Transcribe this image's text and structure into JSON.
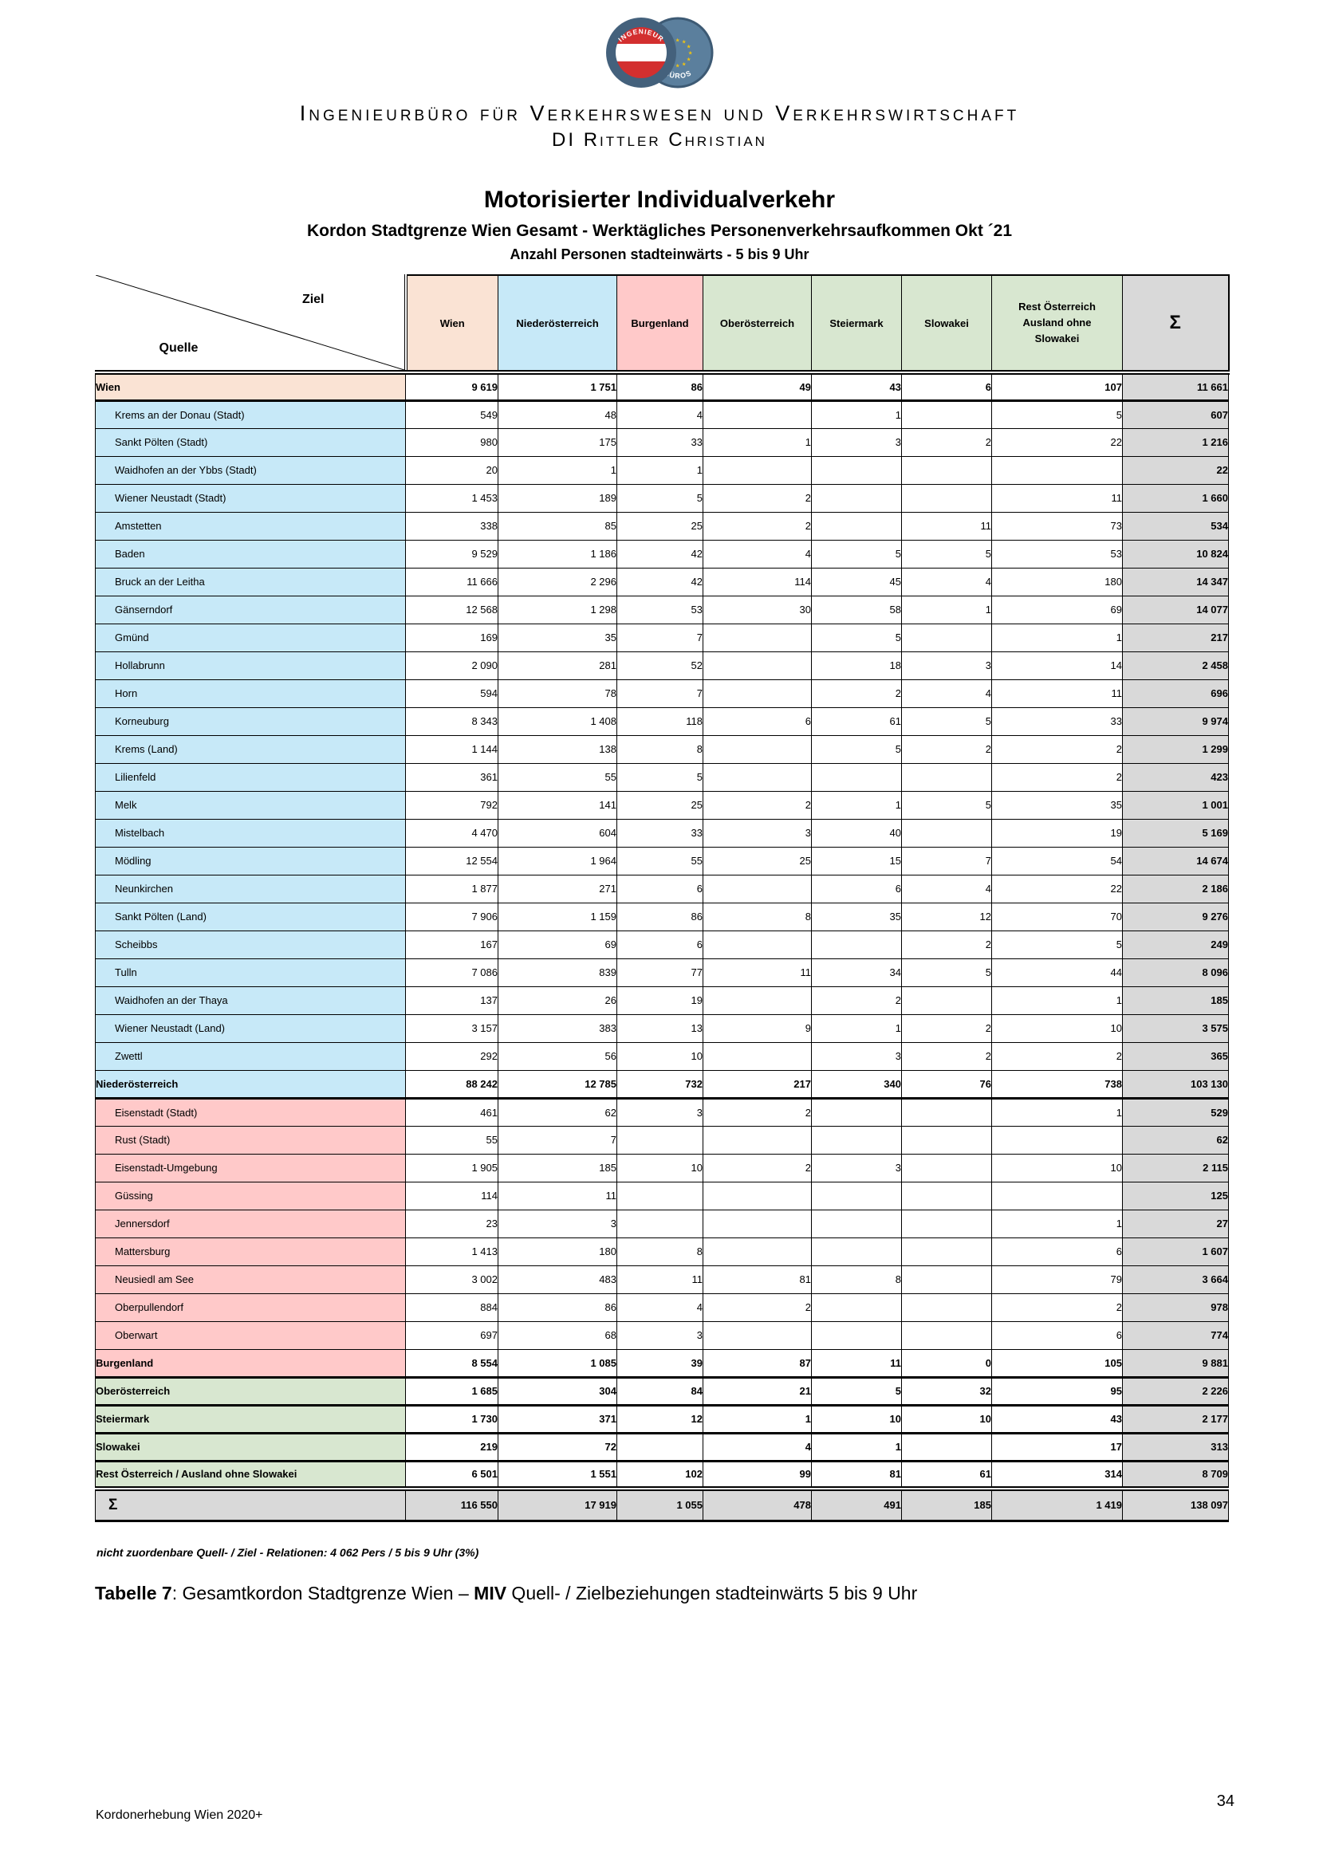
{
  "header": {
    "company_line1": "Ingenieurbüro für Verkehrswesen und Verkehrswirtschaft",
    "company_line2": "DI Rittler Christian",
    "logo": {
      "left_badge": "austria-flag-circle",
      "right_badge": "eu-stars-circle",
      "arc_text_top": "INGENIEUR",
      "arc_text_bottom": "BÜROS"
    }
  },
  "title": "Motorisierter Individualverkehr",
  "subtitle": "Kordon Stadtgrenze Wien Gesamt - Werktägliches Personenverkehrsaufkommen Okt ´21",
  "subtitle2": "Anzahl Personen stadteinwärts - 5 bis 9 Uhr",
  "colors": {
    "wien": "#FAE3D4",
    "niederoesterreich": "#C7E9F8",
    "burgenland": "#FFC9C9",
    "green_regions": "#D8E7D0",
    "sum_gray": "#D9D9D9"
  },
  "table": {
    "corner": {
      "ziel": "Ziel",
      "quelle": "Quelle"
    },
    "columns": [
      {
        "label": "Wien",
        "bg": "#FAE3D4"
      },
      {
        "label": "Niederösterreich",
        "bg": "#C7E9F8"
      },
      {
        "label": "Burgenland",
        "bg": "#FFC9C9"
      },
      {
        "label": "Oberösterreich",
        "bg": "#D8E7D0"
      },
      {
        "label": "Steiermark",
        "bg": "#D8E7D0"
      },
      {
        "label": "Slowakei",
        "bg": "#D8E7D0"
      },
      {
        "label": "Rest Österreich\nAusland ohne\nSlowakei",
        "bg": "#D8E7D0"
      },
      {
        "label": "Σ",
        "bg": "#D9D9D9"
      }
    ],
    "rows": [
      {
        "label": "Wien",
        "type": "wien",
        "values": [
          "9 619",
          "1 751",
          "86",
          "49",
          "43",
          "6",
          "107",
          "11 661"
        ]
      },
      {
        "label": "Krems an der Donau (Stadt)",
        "type": "noe-d",
        "sep": "thick",
        "values": [
          "549",
          "48",
          "4",
          "",
          "1",
          "",
          "5",
          "607"
        ]
      },
      {
        "label": "Sankt Pölten (Stadt)",
        "type": "noe-d",
        "values": [
          "980",
          "175",
          "33",
          "1",
          "3",
          "2",
          "22",
          "1 216"
        ]
      },
      {
        "label": "Waidhofen an der Ybbs (Stadt)",
        "type": "noe-d",
        "values": [
          "20",
          "1",
          "1",
          "",
          "",
          "",
          "",
          "22"
        ]
      },
      {
        "label": "Wiener Neustadt (Stadt)",
        "type": "noe-d",
        "values": [
          "1 453",
          "189",
          "5",
          "2",
          "",
          "",
          "11",
          "1 660"
        ]
      },
      {
        "label": "Amstetten",
        "type": "noe-d",
        "values": [
          "338",
          "85",
          "25",
          "2",
          "",
          "11",
          "73",
          "534"
        ]
      },
      {
        "label": "Baden",
        "type": "noe-d",
        "values": [
          "9 529",
          "1 186",
          "42",
          "4",
          "5",
          "5",
          "53",
          "10 824"
        ]
      },
      {
        "label": "Bruck an der Leitha",
        "type": "noe-d",
        "values": [
          "11 666",
          "2 296",
          "42",
          "114",
          "45",
          "4",
          "180",
          "14 347"
        ]
      },
      {
        "label": "Gänserndorf",
        "type": "noe-d",
        "values": [
          "12 568",
          "1 298",
          "53",
          "30",
          "58",
          "1",
          "69",
          "14 077"
        ]
      },
      {
        "label": "Gmünd",
        "type": "noe-d",
        "values": [
          "169",
          "35",
          "7",
          "",
          "5",
          "",
          "1",
          "217"
        ]
      },
      {
        "label": "Hollabrunn",
        "type": "noe-d",
        "values": [
          "2 090",
          "281",
          "52",
          "",
          "18",
          "3",
          "14",
          "2 458"
        ]
      },
      {
        "label": "Horn",
        "type": "noe-d",
        "values": [
          "594",
          "78",
          "7",
          "",
          "2",
          "4",
          "11",
          "696"
        ]
      },
      {
        "label": "Korneuburg",
        "type": "noe-d",
        "values": [
          "8 343",
          "1 408",
          "118",
          "6",
          "61",
          "5",
          "33",
          "9 974"
        ]
      },
      {
        "label": "Krems (Land)",
        "type": "noe-d",
        "values": [
          "1 144",
          "138",
          "8",
          "",
          "5",
          "2",
          "2",
          "1 299"
        ]
      },
      {
        "label": "Lilienfeld",
        "type": "noe-d",
        "values": [
          "361",
          "55",
          "5",
          "",
          "",
          "",
          "2",
          "423"
        ]
      },
      {
        "label": "Melk",
        "type": "noe-d",
        "values": [
          "792",
          "141",
          "25",
          "2",
          "1",
          "5",
          "35",
          "1 001"
        ]
      },
      {
        "label": "Mistelbach",
        "type": "noe-d",
        "values": [
          "4 470",
          "604",
          "33",
          "3",
          "40",
          "",
          "19",
          "5 169"
        ]
      },
      {
        "label": "Mödling",
        "type": "noe-d",
        "values": [
          "12 554",
          "1 964",
          "55",
          "25",
          "15",
          "7",
          "54",
          "14 674"
        ]
      },
      {
        "label": "Neunkirchen",
        "type": "noe-d",
        "values": [
          "1 877",
          "271",
          "6",
          "",
          "6",
          "4",
          "22",
          "2 186"
        ]
      },
      {
        "label": "Sankt Pölten (Land)",
        "type": "noe-d",
        "values": [
          "7 906",
          "1 159",
          "86",
          "8",
          "35",
          "12",
          "70",
          "9 276"
        ]
      },
      {
        "label": "Scheibbs",
        "type": "noe-d",
        "values": [
          "167",
          "69",
          "6",
          "",
          "",
          "2",
          "5",
          "249"
        ]
      },
      {
        "label": "Tulln",
        "type": "noe-d",
        "values": [
          "7 086",
          "839",
          "77",
          "11",
          "34",
          "5",
          "44",
          "8 096"
        ]
      },
      {
        "label": "Waidhofen an der Thaya",
        "type": "noe-d",
        "values": [
          "137",
          "26",
          "19",
          "",
          "2",
          "",
          "1",
          "185"
        ]
      },
      {
        "label": "Wiener Neustadt (Land)",
        "type": "noe-d",
        "values": [
          "3 157",
          "383",
          "13",
          "9",
          "1",
          "2",
          "10",
          "3 575"
        ]
      },
      {
        "label": "Zwettl",
        "type": "noe-d",
        "values": [
          "292",
          "56",
          "10",
          "",
          "3",
          "2",
          "2",
          "365"
        ]
      },
      {
        "label": "Niederösterreich",
        "type": "noe-t",
        "values": [
          "88 242",
          "12 785",
          "732",
          "217",
          "340",
          "76",
          "738",
          "103 130"
        ]
      },
      {
        "label": "Eisenstadt (Stadt)",
        "type": "bgl-d",
        "sep": "thick",
        "values": [
          "461",
          "62",
          "3",
          "2",
          "",
          "",
          "1",
          "529"
        ]
      },
      {
        "label": "Rust (Stadt)",
        "type": "bgl-d",
        "values": [
          "55",
          "7",
          "",
          "",
          "",
          "",
          "",
          "62"
        ]
      },
      {
        "label": "Eisenstadt-Umgebung",
        "type": "bgl-d",
        "values": [
          "1 905",
          "185",
          "10",
          "2",
          "3",
          "",
          "10",
          "2 115"
        ]
      },
      {
        "label": "Güssing",
        "type": "bgl-d",
        "values": [
          "114",
          "11",
          "",
          "",
          "",
          "",
          "",
          "125"
        ]
      },
      {
        "label": "Jennersdorf",
        "type": "bgl-d",
        "values": [
          "23",
          "3",
          "",
          "",
          "",
          "",
          "1",
          "27"
        ]
      },
      {
        "label": "Mattersburg",
        "type": "bgl-d",
        "values": [
          "1 413",
          "180",
          "8",
          "",
          "",
          "",
          "6",
          "1 607"
        ]
      },
      {
        "label": "Neusiedl am See",
        "type": "bgl-d",
        "values": [
          "3 002",
          "483",
          "11",
          "81",
          "8",
          "",
          "79",
          "3 664"
        ]
      },
      {
        "label": "Oberpullendorf",
        "type": "bgl-d",
        "values": [
          "884",
          "86",
          "4",
          "2",
          "",
          "",
          "2",
          "978"
        ]
      },
      {
        "label": "Oberwart",
        "type": "bgl-d",
        "values": [
          "697",
          "68",
          "3",
          "",
          "",
          "",
          "6",
          "774"
        ]
      },
      {
        "label": "Burgenland",
        "type": "bgl-t",
        "values": [
          "8 554",
          "1 085",
          "39",
          "87",
          "11",
          "0",
          "105",
          "9 881"
        ]
      },
      {
        "label": "Oberösterreich",
        "type": "grn-t",
        "sep": "thick",
        "values": [
          "1 685",
          "304",
          "84",
          "21",
          "5",
          "32",
          "95",
          "2 226"
        ]
      },
      {
        "label": "Steiermark",
        "type": "grn-t",
        "sep": "thick",
        "values": [
          "1 730",
          "371",
          "12",
          "1",
          "10",
          "10",
          "43",
          "2 177"
        ]
      },
      {
        "label": "Slowakei",
        "type": "grn-t",
        "sep": "thick",
        "values": [
          "219",
          "72",
          "",
          "4",
          "1",
          "",
          "17",
          "313"
        ]
      },
      {
        "label": "Rest Österreich / Ausland ohne Slowakei",
        "type": "grn-t",
        "sep": "thick",
        "values": [
          "6 501",
          "1 551",
          "102",
          "99",
          "81",
          "61",
          "314",
          "8 709"
        ]
      },
      {
        "label": "Σ",
        "type": "sum",
        "sep": "double",
        "values": [
          "116 550",
          "17 919",
          "1 055",
          "478",
          "491",
          "185",
          "1 419",
          "138 097"
        ]
      }
    ]
  },
  "note": "nicht zuordenbare Quell- / Ziel - Relationen: 4 062 Pers / 5 bis 9 Uhr (3%)",
  "caption": {
    "t1": "Tabelle 7",
    "t2": ": Gesamtkordon Stadtgrenze Wien – ",
    "t3": "MIV",
    "t4": " Quell- / Zielbeziehungen stadteinwärts 5 bis 9 Uhr"
  },
  "footer": {
    "left": "Kordonerhebung Wien 2020+",
    "page": "34"
  }
}
